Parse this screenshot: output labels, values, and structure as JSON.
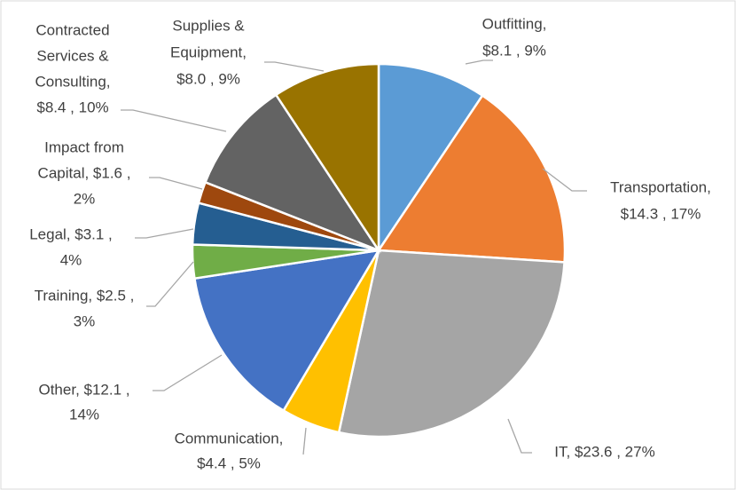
{
  "chart_data": {
    "type": "pie",
    "labels": [
      [
        "Outfitting,",
        "$8.1 , 9%"
      ],
      [
        "Transportation,",
        "$14.3 , 17%"
      ],
      [
        "IT,  $23.6 , 27%"
      ],
      [
        "Communication,",
        "$4.4 , 5%"
      ],
      [
        "Other,  $12.1 ,",
        "14%"
      ],
      [
        "Training,  $2.5 ,",
        "3%"
      ],
      [
        "Legal,  $3.1 ,",
        "4%"
      ],
      [
        "Impact from",
        "Capital,  $1.6 ,",
        "2%"
      ],
      [
        "Contracted",
        "Services &",
        "Consulting,",
        "$8.4 , 10%"
      ],
      [
        "Supplies &",
        "Equipment,",
        "$8.0 , 9%"
      ]
    ],
    "values": [
      8.1,
      14.3,
      23.6,
      4.4,
      12.1,
      2.5,
      3.1,
      1.6,
      8.4,
      8.0
    ],
    "colors": [
      "#5b9bd5",
      "#ed7d31",
      "#a5a5a5",
      "#ffc000",
      "#4472c4",
      "#70ad47",
      "#255e91",
      "#9e480e",
      "#636363",
      "#997300"
    ]
  }
}
